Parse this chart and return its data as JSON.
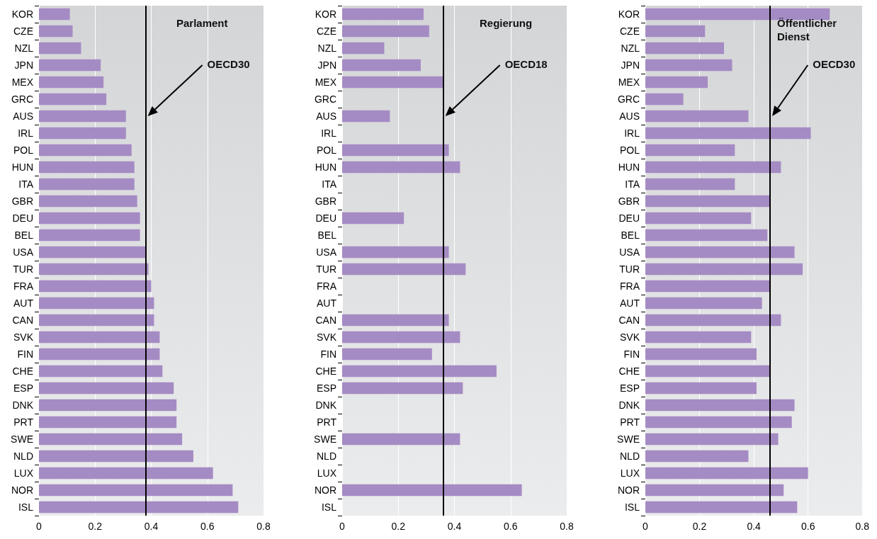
{
  "chart_data": [
    {
      "type": "bar",
      "orientation": "horizontal",
      "title": "Parlament",
      "categories": [
        "KOR",
        "CZE",
        "NZL",
        "JPN",
        "MEX",
        "GRC",
        "AUS",
        "IRL",
        "POL",
        "HUN",
        "ITA",
        "GBR",
        "DEU",
        "BEL",
        "USA",
        "TUR",
        "FRA",
        "AUT",
        "CAN",
        "SVK",
        "FIN",
        "CHE",
        "ESP",
        "DNK",
        "PRT",
        "SWE",
        "NLD",
        "LUX",
        "NOR",
        "ISL"
      ],
      "values": [
        0.11,
        0.12,
        0.15,
        0.22,
        0.23,
        0.24,
        0.31,
        0.31,
        0.33,
        0.34,
        0.34,
        0.35,
        0.36,
        0.36,
        0.38,
        0.39,
        0.4,
        0.41,
        0.41,
        0.43,
        0.43,
        0.44,
        0.48,
        0.49,
        0.49,
        0.51,
        0.55,
        0.62,
        0.69,
        0.71
      ],
      "color": "#a58bc4",
      "xlim": [
        0,
        0.8
      ],
      "xticks": [
        0,
        0.2,
        0.4,
        0.6,
        0.8
      ],
      "grid": "x",
      "ref_lines": [
        {
          "axis": "x",
          "value": 0.38,
          "label": "OECD30",
          "color": "#000000"
        }
      ]
    },
    {
      "type": "bar",
      "orientation": "horizontal",
      "title": "Regierung",
      "categories": [
        "KOR",
        "CZE",
        "NZL",
        "JPN",
        "MEX",
        "GRC",
        "AUS",
        "IRL",
        "POL",
        "HUN",
        "ITA",
        "GBR",
        "DEU",
        "BEL",
        "USA",
        "TUR",
        "FRA",
        "AUT",
        "CAN",
        "SVK",
        "FIN",
        "CHE",
        "ESP",
        "DNK",
        "PRT",
        "SWE",
        "NLD",
        "LUX",
        "NOR",
        "ISL"
      ],
      "values": [
        0.29,
        0.31,
        0.15,
        0.28,
        0.36,
        null,
        0.17,
        null,
        0.38,
        0.42,
        null,
        null,
        0.22,
        null,
        0.38,
        0.44,
        null,
        null,
        0.38,
        0.42,
        0.32,
        0.55,
        0.43,
        null,
        null,
        0.42,
        null,
        null,
        0.64,
        null
      ],
      "color": "#a58bc4",
      "xlim": [
        0,
        0.8
      ],
      "xticks": [
        0,
        0.2,
        0.4,
        0.6,
        0.8
      ],
      "grid": "x",
      "ref_lines": [
        {
          "axis": "x",
          "value": 0.36,
          "label": "OECD18",
          "color": "#000000"
        }
      ]
    },
    {
      "type": "bar",
      "orientation": "horizontal",
      "title": "Öffentlicher Dienst",
      "categories": [
        "KOR",
        "CZE",
        "NZL",
        "JPN",
        "MEX",
        "GRC",
        "AUS",
        "IRL",
        "POL",
        "HUN",
        "ITA",
        "GBR",
        "DEU",
        "BEL",
        "USA",
        "TUR",
        "FRA",
        "AUT",
        "CAN",
        "SVK",
        "FIN",
        "CHE",
        "ESP",
        "DNK",
        "PRT",
        "SWE",
        "NLD",
        "LUX",
        "NOR",
        "ISL"
      ],
      "values": [
        0.68,
        0.22,
        0.29,
        0.32,
        0.23,
        0.14,
        0.38,
        0.61,
        0.33,
        0.5,
        0.33,
        0.46,
        0.39,
        0.45,
        0.55,
        0.58,
        0.46,
        0.43,
        0.5,
        0.39,
        0.41,
        0.46,
        0.41,
        0.55,
        0.54,
        0.49,
        0.38,
        0.6,
        0.51,
        0.56
      ],
      "color": "#a58bc4",
      "xlim": [
        0,
        0.8
      ],
      "xticks": [
        0,
        0.2,
        0.4,
        0.6,
        0.8
      ],
      "grid": "x",
      "ref_lines": [
        {
          "axis": "x",
          "value": 0.46,
          "label": "OECD30",
          "color": "#000000"
        }
      ]
    }
  ]
}
